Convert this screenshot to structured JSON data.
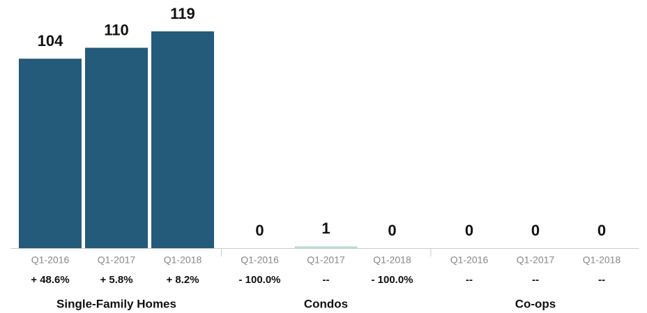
{
  "chart_data": {
    "type": "bar",
    "groups": [
      {
        "name": "Single-Family Homes",
        "color": "#245a7a",
        "categories": [
          "Q1-2016",
          "Q1-2017",
          "Q1-2018"
        ],
        "values": [
          104,
          110,
          119
        ],
        "changes": [
          "+ 48.6%",
          "+ 5.8%",
          "+ 8.2%"
        ]
      },
      {
        "name": "Condos",
        "color": "#b7dcd2",
        "categories": [
          "Q1-2016",
          "Q1-2017",
          "Q1-2018"
        ],
        "values": [
          0,
          1,
          0
        ],
        "changes": [
          "- 100.0%",
          "--",
          "- 100.0%"
        ]
      },
      {
        "name": "Co-ops",
        "categories": [
          "Q1-2016",
          "Q1-2017",
          "Q1-2018"
        ],
        "values": [
          0,
          0,
          0
        ],
        "changes": [
          "--",
          "--",
          "--"
        ]
      }
    ]
  }
}
